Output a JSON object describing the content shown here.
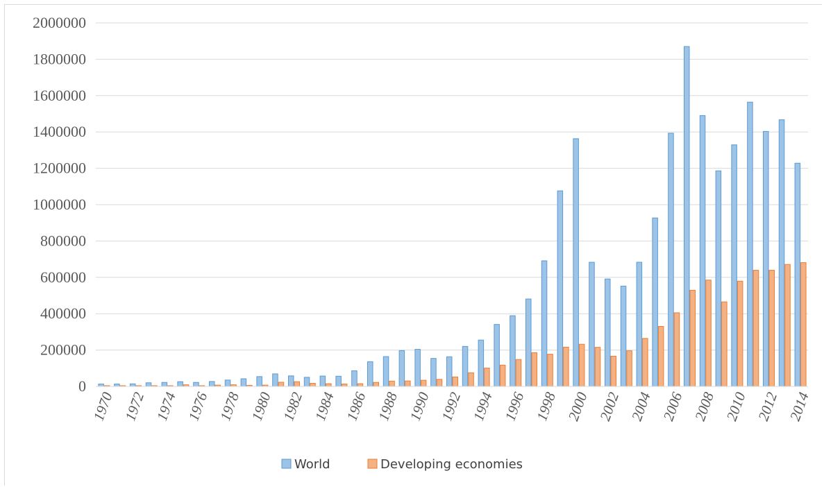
{
  "chart_data": {
    "type": "bar",
    "title": "",
    "xlabel": "",
    "ylabel": "",
    "ylim": [
      0,
      2000000
    ],
    "yticks": [
      0,
      200000,
      400000,
      600000,
      800000,
      1000000,
      1200000,
      1400000,
      1600000,
      1800000,
      2000000
    ],
    "grid": true,
    "legend_position": "bottom",
    "categories": [
      "1970",
      "1971",
      "1972",
      "1973",
      "1974",
      "1975",
      "1976",
      "1977",
      "1978",
      "1979",
      "1980",
      "1981",
      "1982",
      "1983",
      "1984",
      "1985",
      "1986",
      "1987",
      "1988",
      "1989",
      "1990",
      "1991",
      "1992",
      "1993",
      "1994",
      "1995",
      "1996",
      "1997",
      "1998",
      "1999",
      "2000",
      "2001",
      "2002",
      "2003",
      "2004",
      "2005",
      "2006",
      "2007",
      "2008",
      "2009",
      "2010",
      "2011",
      "2012",
      "2013",
      "2014"
    ],
    "x_tick_labels": [
      "1970",
      "1972",
      "1974",
      "1976",
      "1978",
      "1980",
      "1982",
      "1984",
      "1986",
      "1988",
      "1990",
      "1992",
      "1994",
      "1996",
      "1998",
      "2000",
      "2002",
      "2004",
      "2006",
      "2008",
      "2010",
      "2012",
      "2014"
    ],
    "series": [
      {
        "name": "World",
        "color": "#9DC3E6",
        "edge_color": "#5B9BD5",
        "values": [
          13000,
          13000,
          14000,
          20000,
          22000,
          26000,
          22000,
          27000,
          35000,
          42000,
          54000,
          69000,
          58000,
          50000,
          57000,
          56000,
          86000,
          136000,
          164000,
          197000,
          204000,
          154000,
          163000,
          220000,
          255000,
          341000,
          389000,
          481000,
          691000,
          1076000,
          1363000,
          683000,
          591000,
          552000,
          683000,
          927000,
          1393000,
          1870000,
          1490000,
          1186000,
          1329000,
          1564000,
          1403000,
          1467000,
          1228000
        ]
      },
      {
        "name": "Developing economies",
        "color": "#F4B183",
        "edge_color": "#ED7D31",
        "values": [
          4000,
          4000,
          4000,
          4000,
          4000,
          9000,
          4000,
          7000,
          9000,
          6000,
          7000,
          23000,
          26000,
          17000,
          15000,
          13000,
          15000,
          22000,
          29000,
          30000,
          34000,
          39000,
          52000,
          75000,
          101000,
          117000,
          148000,
          185000,
          177000,
          216000,
          232000,
          215000,
          166000,
          196000,
          264000,
          330000,
          405000,
          529000,
          585000,
          465000,
          579000,
          639000,
          639000,
          671000,
          681000
        ]
      }
    ]
  }
}
